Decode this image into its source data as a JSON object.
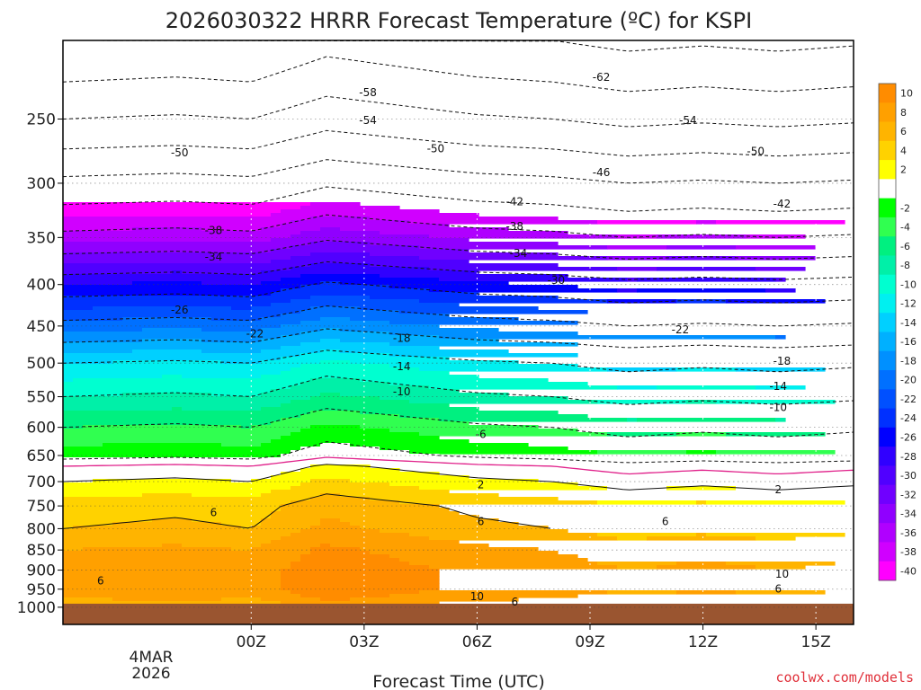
{
  "colors": {
    "credit": "#e0303a",
    "ground": "#9a5530",
    "freezing": "#e0208a"
  },
  "chart_data": {
    "type": "heatmap",
    "title": "2026030322 HRRR Forecast Temperature (ºC) for KSPI",
    "xlabel": "Forecast Time (UTC)",
    "credit": "coolwx.com/models",
    "x_range_hours": [
      -3,
      18
    ],
    "y_axis": "pressure (hPa)",
    "ylim": [
      1050,
      200
    ],
    "x_ticks": [
      {
        "hour": 2,
        "label": "00Z"
      },
      {
        "hour": 5,
        "label": "03Z"
      },
      {
        "hour": 8,
        "label": "06Z"
      },
      {
        "hour": 11,
        "label": "09Z"
      },
      {
        "hour": 14,
        "label": "12Z"
      },
      {
        "hour": 17,
        "label": "15Z"
      }
    ],
    "x_date_label": [
      "4MAR",
      "2026"
    ],
    "y_ticks": [
      250,
      300,
      350,
      400,
      450,
      500,
      550,
      600,
      650,
      700,
      750,
      800,
      850,
      900,
      950,
      1000
    ],
    "colorbar": [
      {
        "label": "10",
        "color": "#ff8c00"
      },
      {
        "label": "8",
        "color": "#ffa000"
      },
      {
        "label": "6",
        "color": "#ffb400"
      },
      {
        "label": "4",
        "color": "#ffd200"
      },
      {
        "label": "2",
        "color": "#ffff00"
      },
      {
        "label": "",
        "color": "#ffffff"
      },
      {
        "label": "-2",
        "color": "#00ff00"
      },
      {
        "label": "-4",
        "color": "#30ff50"
      },
      {
        "label": "-6",
        "color": "#00f080"
      },
      {
        "label": "-8",
        "color": "#00f0a8"
      },
      {
        "label": "-10",
        "color": "#00ffd0"
      },
      {
        "label": "-12",
        "color": "#00f0f0"
      },
      {
        "label": "-14",
        "color": "#00d0ff"
      },
      {
        "label": "-16",
        "color": "#00b0ff"
      },
      {
        "label": "-18",
        "color": "#0090ff"
      },
      {
        "label": "-20",
        "color": "#0070ff"
      },
      {
        "label": "-22",
        "color": "#0050ff"
      },
      {
        "label": "-24",
        "color": "#0030ff"
      },
      {
        "label": "-26",
        "color": "#0000ff"
      },
      {
        "label": "-28",
        "color": "#3000ff"
      },
      {
        "label": "-30",
        "color": "#5000ff"
      },
      {
        "label": "-32",
        "color": "#7000ff"
      },
      {
        "label": "-34",
        "color": "#9000ff"
      },
      {
        "label": "-36",
        "color": "#b000ff"
      },
      {
        "label": "-38",
        "color": "#d000ff"
      },
      {
        "label": "-40",
        "color": "#ff00ff"
      }
    ],
    "profile": [
      {
        "p": 1000,
        "t": 6
      },
      {
        "p": 975,
        "t": 8
      },
      {
        "p": 950,
        "t": 9
      },
      {
        "p": 900,
        "t": 9
      },
      {
        "p": 850,
        "t": 8
      },
      {
        "p": 800,
        "t": 6
      },
      {
        "p": 750,
        "t": 5
      },
      {
        "p": 700,
        "t": 2
      },
      {
        "p": 670,
        "t": 0
      },
      {
        "p": 650,
        "t": -3
      },
      {
        "p": 600,
        "t": -6
      },
      {
        "p": 550,
        "t": -10
      },
      {
        "p": 500,
        "t": -14
      },
      {
        "p": 450,
        "t": -21
      },
      {
        "p": 400,
        "t": -28
      },
      {
        "p": 350,
        "t": -37
      },
      {
        "p": 300,
        "t": -45
      },
      {
        "p": 250,
        "t": -54
      },
      {
        "p": 200,
        "t": -62
      }
    ],
    "time_offset": [
      {
        "hour": -3,
        "dt": 0
      },
      {
        "hour": 0,
        "dt": 0.5
      },
      {
        "hour": 2,
        "dt": 0
      },
      {
        "hour": 4,
        "dt": 2.5
      },
      {
        "hour": 6,
        "dt": 1.5
      },
      {
        "hour": 8,
        "dt": 0.5
      },
      {
        "hour": 10,
        "dt": 0
      },
      {
        "hour": 12,
        "dt": -1
      },
      {
        "hour": 14,
        "dt": -0.5
      },
      {
        "hour": 16,
        "dt": -1
      },
      {
        "hour": 18,
        "dt": -0.5
      }
    ],
    "contour_labels": [
      {
        "hour": 11.3,
        "p": 222,
        "label": "-62"
      },
      {
        "hour": 5.1,
        "p": 232,
        "label": "-58"
      },
      {
        "hour": 5.1,
        "p": 251,
        "label": "-54"
      },
      {
        "hour": 13.6,
        "p": 251,
        "label": "-54"
      },
      {
        "hour": 0.1,
        "p": 275,
        "label": "-50"
      },
      {
        "hour": 6.9,
        "p": 272,
        "label": "-50"
      },
      {
        "hour": 15.4,
        "p": 274,
        "label": "-50"
      },
      {
        "hour": 11.3,
        "p": 291,
        "label": "-46"
      },
      {
        "hour": 9.0,
        "p": 316,
        "label": "-42"
      },
      {
        "hour": 16.1,
        "p": 318,
        "label": "-42"
      },
      {
        "hour": 1.0,
        "p": 343,
        "label": "-38"
      },
      {
        "hour": 9.0,
        "p": 339,
        "label": "-38"
      },
      {
        "hour": 1.0,
        "p": 370,
        "label": "-34"
      },
      {
        "hour": 9.1,
        "p": 366,
        "label": "-34"
      },
      {
        "hour": 10.1,
        "p": 395,
        "label": "-30"
      },
      {
        "hour": 0.1,
        "p": 430,
        "label": "-26"
      },
      {
        "hour": 2.1,
        "p": 460,
        "label": "-22"
      },
      {
        "hour": 13.4,
        "p": 455,
        "label": "-22"
      },
      {
        "hour": 6.0,
        "p": 466,
        "label": "-18"
      },
      {
        "hour": 16.1,
        "p": 497,
        "label": "-18"
      },
      {
        "hour": 6.0,
        "p": 505,
        "label": "-14"
      },
      {
        "hour": 16.0,
        "p": 534,
        "label": "-14"
      },
      {
        "hour": 6.0,
        "p": 542,
        "label": "-10"
      },
      {
        "hour": 16.0,
        "p": 567,
        "label": "-10"
      },
      {
        "hour": 8.1,
        "p": 612,
        "label": "-6"
      },
      {
        "hour": 8.1,
        "p": 706,
        "label": "2"
      },
      {
        "hour": 16.0,
        "p": 716,
        "label": "2"
      },
      {
        "hour": 1.0,
        "p": 764,
        "label": "6"
      },
      {
        "hour": 8.1,
        "p": 784,
        "label": "6"
      },
      {
        "hour": 13.0,
        "p": 784,
        "label": "6"
      },
      {
        "hour": -2.0,
        "p": 928,
        "label": "6"
      },
      {
        "hour": 8.0,
        "p": 970,
        "label": "10"
      },
      {
        "hour": 16.1,
        "p": 910,
        "label": "10"
      },
      {
        "hour": 16.0,
        "p": 949,
        "label": "6"
      },
      {
        "hour": 9.0,
        "p": 985,
        "label": "6"
      }
    ]
  }
}
